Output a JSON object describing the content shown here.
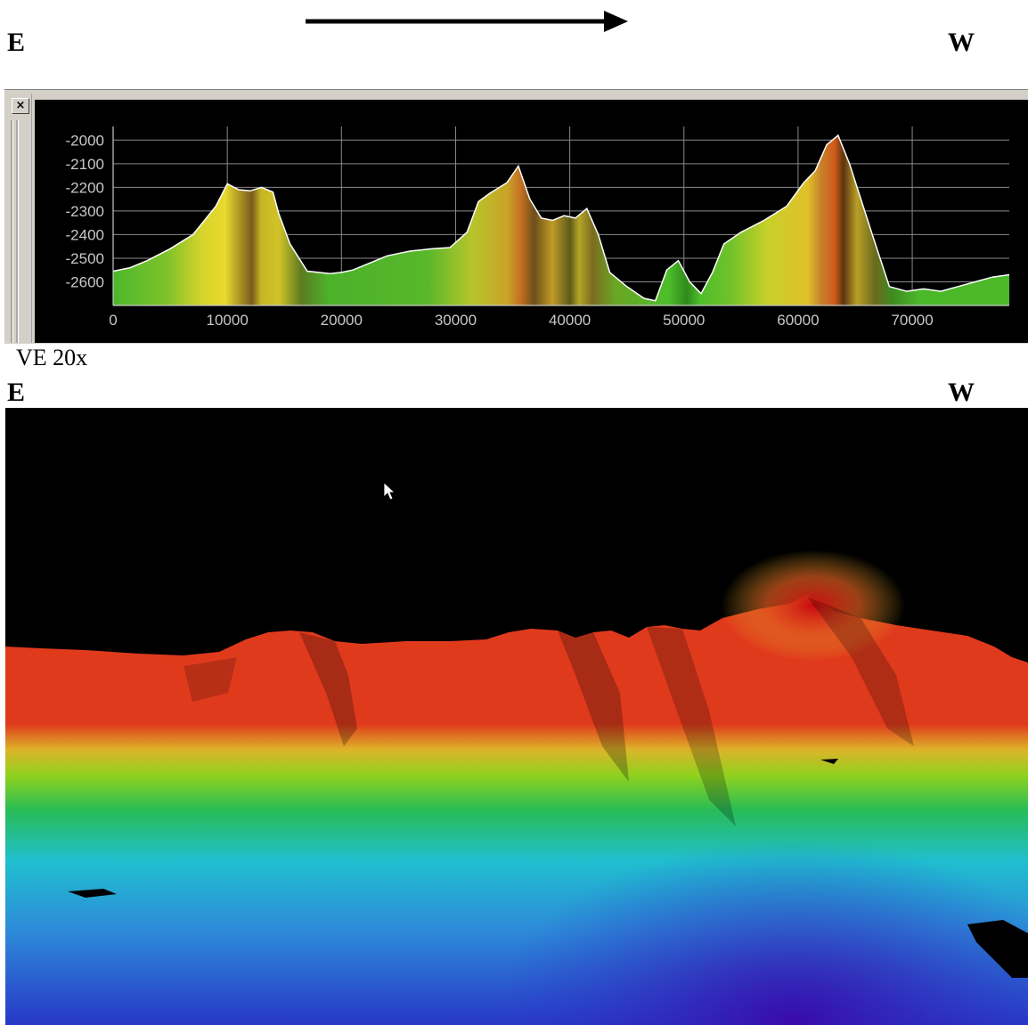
{
  "top_directions": {
    "left": "E",
    "right": "W"
  },
  "bottom_directions": {
    "left": "E",
    "right": "W"
  },
  "arrow": {
    "direction": "east-to-west",
    "icon": "right-arrow-icon"
  },
  "profile_window": {
    "close_icon": "close-icon",
    "close_glyph": "×",
    "chart_data": {
      "type": "area",
      "title": "",
      "xlabel": "",
      "ylabel": "",
      "xlim": [
        0,
        78500
      ],
      "ylim": [
        -2700,
        -1980
      ],
      "xticks": [
        0,
        10000,
        20000,
        30000,
        40000,
        50000,
        60000,
        70000
      ],
      "yticks": [
        -2000,
        -2100,
        -2200,
        -2300,
        -2400,
        -2500,
        -2600
      ],
      "grid": true,
      "background": "#000000",
      "line_color": "#ffffff",
      "fill_colors": [
        "#4cb82a",
        "#e2d82c",
        "#c98426",
        "#6d5a1c"
      ],
      "series": [
        {
          "x": [
            0,
            1500,
            3000,
            5000,
            7000,
            9000,
            10000,
            11000,
            12000,
            13000,
            14000,
            14500,
            15500,
            17000,
            18000,
            19000,
            20000,
            21000,
            22000,
            24000,
            26000,
            28000,
            29500,
            31000,
            32000,
            33000,
            34500,
            35500,
            36500,
            37500,
            38500,
            39500,
            40500,
            41500,
            42500,
            43500,
            45000,
            46500,
            47500,
            48500,
            49500,
            50500,
            51500,
            52500,
            53500,
            55000,
            57000,
            59000,
            60500,
            61500,
            62500,
            63500,
            64500,
            65500,
            66500,
            68000,
            69500,
            71000,
            72500,
            74000,
            75500,
            77000,
            78500
          ],
          "y": [
            -2555,
            -2540,
            -2510,
            -2460,
            -2400,
            -2280,
            -2185,
            -2210,
            -2215,
            -2200,
            -2220,
            -2310,
            -2440,
            -2555,
            -2560,
            -2565,
            -2560,
            -2550,
            -2530,
            -2490,
            -2470,
            -2460,
            -2455,
            -2390,
            -2260,
            -2225,
            -2180,
            -2110,
            -2250,
            -2330,
            -2340,
            -2320,
            -2330,
            -2290,
            -2400,
            -2560,
            -2620,
            -2670,
            -2680,
            -2550,
            -2510,
            -2600,
            -2650,
            -2560,
            -2440,
            -2390,
            -2340,
            -2280,
            -2180,
            -2130,
            -2020,
            -1980,
            -2100,
            -2250,
            -2400,
            -2620,
            -2640,
            -2630,
            -2640,
            -2620,
            -2600,
            -2580,
            -2570
          ]
        }
      ]
    }
  },
  "ve_label": "VE 20x",
  "terrain_view": {
    "colors": [
      "#7a0a10",
      "#e03a1c",
      "#ddb429",
      "#8fd21e",
      "#28bc56",
      "#20bfd0",
      "#2d8bd8",
      "#2838c8",
      "#3a0aa8"
    ]
  },
  "cursor": {
    "icon": "mouse-pointer-icon"
  }
}
